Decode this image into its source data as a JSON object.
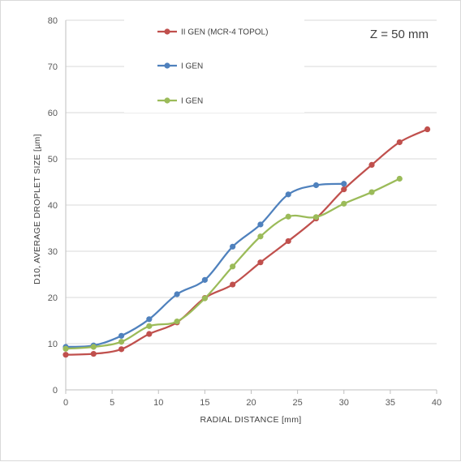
{
  "chart_data": {
    "type": "line",
    "title": "",
    "annotation": "Z = 50 mm",
    "xlabel": "RADIAL DISTANCE [mm]",
    "ylabel": "D10, AVERAGE  DROPLET SIZE [µm]",
    "xlim": [
      0,
      40
    ],
    "ylim": [
      0,
      80
    ],
    "xticks": [
      "0",
      "5",
      "10",
      "15",
      "20",
      "25",
      "30",
      "35",
      "40"
    ],
    "yticks": [
      "0",
      "10",
      "20",
      "30",
      "40",
      "50",
      "60",
      "70",
      "80"
    ],
    "grid": "horizontal",
    "legend_position": "top",
    "smooth": true,
    "series": [
      {
        "name": "II GEN (MCR-4 TOPOL)",
        "color": "#c0504d",
        "x": [
          0,
          3,
          6,
          9,
          12,
          15,
          18,
          21,
          24,
          27,
          30,
          33,
          36,
          39
        ],
        "y": [
          7.6,
          7.8,
          8.8,
          12.1,
          14.6,
          19.9,
          22.8,
          27.6,
          32.2,
          37.1,
          43.4,
          48.7,
          53.6,
          56.4
        ]
      },
      {
        "name": "I GEN",
        "color": "#4f81bd",
        "x": [
          0,
          3,
          6,
          9,
          12,
          15,
          18,
          21,
          24,
          27,
          30
        ],
        "y": [
          9.3,
          9.6,
          11.7,
          15.3,
          20.7,
          23.8,
          31.0,
          35.8,
          42.3,
          44.3,
          44.6
        ]
      },
      {
        "name": "I GEN",
        "color": "#9bbb59",
        "x": [
          0,
          3,
          6,
          9,
          12,
          15,
          18,
          21,
          24,
          27,
          30,
          33,
          36
        ],
        "y": [
          8.9,
          9.3,
          10.4,
          13.8,
          14.8,
          19.8,
          26.7,
          33.2,
          37.5,
          37.4,
          40.3,
          42.8,
          45.7
        ]
      }
    ]
  }
}
